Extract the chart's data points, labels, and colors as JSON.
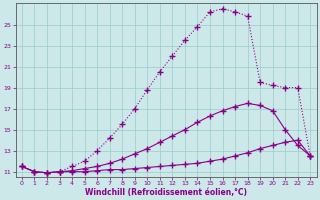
{
  "background_color": "#cce8e8",
  "line_color": "#880088",
  "marker": "+",
  "markersize": 4,
  "linewidth": 0.8,
  "xlabel": "Windchill (Refroidissement éolien,°C)",
  "xlim": [
    -0.5,
    23.5
  ],
  "ylim": [
    10.5,
    27.0
  ],
  "xticks": [
    0,
    1,
    2,
    3,
    4,
    5,
    6,
    7,
    8,
    9,
    10,
    11,
    12,
    13,
    14,
    15,
    16,
    17,
    18,
    19,
    20,
    21,
    22,
    23
  ],
  "yticks": [
    11,
    13,
    15,
    17,
    19,
    21,
    23,
    25
  ],
  "grid_color": "#99cccc",
  "series": [
    {
      "x": [
        0,
        1,
        2,
        3,
        4,
        5,
        6,
        7,
        8,
        9,
        10,
        11,
        12,
        13,
        14,
        15,
        16,
        17,
        18,
        19,
        20,
        21,
        22,
        23
      ],
      "y": [
        11.5,
        11.0,
        10.9,
        11.0,
        11.0,
        11.0,
        11.1,
        11.2,
        11.2,
        11.3,
        11.4,
        11.5,
        11.6,
        11.7,
        11.8,
        12.0,
        12.2,
        12.5,
        12.8,
        13.2,
        13.5,
        13.8,
        14.0,
        12.5
      ],
      "linestyle": "-",
      "linewidth": 0.8
    },
    {
      "x": [
        0,
        1,
        2,
        3,
        4,
        5,
        6,
        7,
        8,
        9,
        10,
        11,
        12,
        13,
        14,
        15,
        16,
        17,
        18,
        19,
        20,
        21,
        22,
        23
      ],
      "y": [
        11.5,
        11.0,
        10.9,
        11.0,
        11.1,
        11.3,
        11.5,
        11.8,
        12.2,
        12.7,
        13.2,
        13.8,
        14.4,
        15.0,
        15.7,
        16.3,
        16.8,
        17.2,
        17.5,
        17.3,
        16.8,
        15.0,
        13.5,
        12.5
      ],
      "linestyle": "-",
      "linewidth": 0.8
    },
    {
      "x": [
        0,
        1,
        2,
        3,
        4,
        5,
        6,
        7,
        8,
        9,
        10,
        11,
        12,
        13,
        14,
        15,
        16,
        17,
        18,
        19,
        20,
        21,
        22,
        23
      ],
      "y": [
        11.5,
        11.0,
        10.9,
        11.0,
        11.5,
        12.0,
        13.0,
        14.2,
        15.5,
        17.0,
        18.8,
        20.5,
        22.0,
        23.5,
        24.8,
        26.2,
        26.5,
        26.2,
        25.8,
        19.5,
        19.2,
        19.0,
        19.0,
        12.5
      ],
      "linestyle": "dotted",
      "linewidth": 0.8
    }
  ]
}
